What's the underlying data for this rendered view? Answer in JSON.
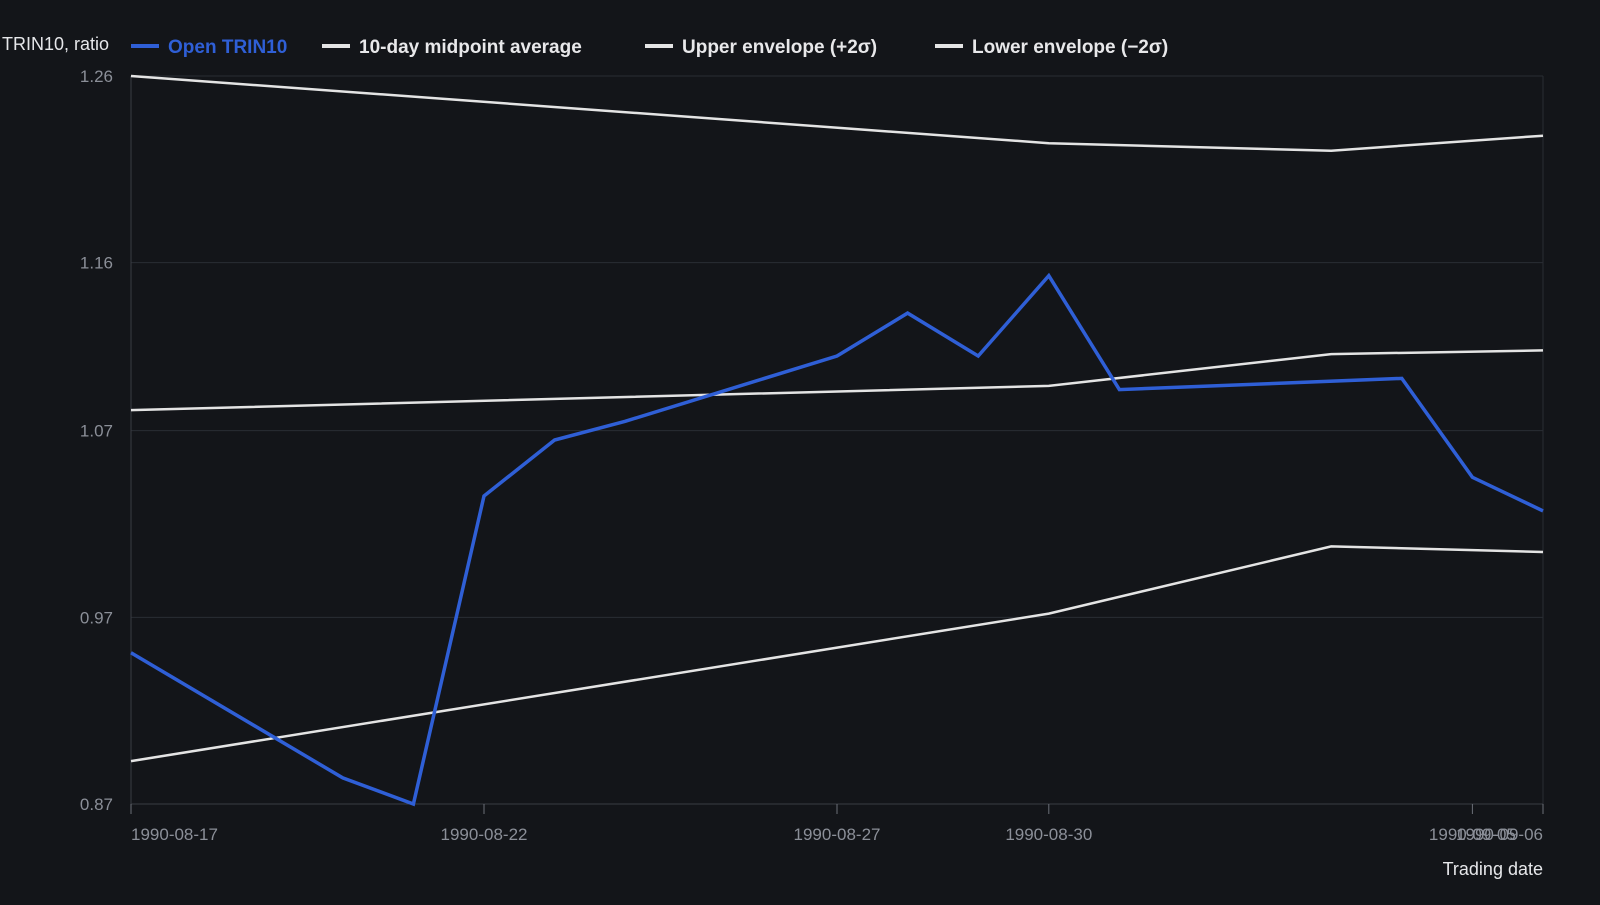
{
  "chart_data": {
    "type": "line",
    "ylabel": "TRIN10, ratio",
    "xlabel": "Trading date",
    "ylim": [
      0.87,
      1.26
    ],
    "y_ticks": [
      "0.87",
      "0.97",
      "1.07",
      "1.16",
      "1.26"
    ],
    "y_tick_values": [
      0.87,
      0.97,
      1.07,
      1.16,
      1.26
    ],
    "x_ticks": [
      "1990-08-17",
      "1990-08-22",
      "1990-08-27",
      "1990-08-30",
      "1990-09-05",
      "1990-09-06"
    ],
    "x_range": [
      "1990-08-17",
      "1990-09-06"
    ],
    "grid": true,
    "legend_position": "top-left",
    "series": [
      {
        "name": "Open TRIN10",
        "color": "#2f5fd6",
        "points": [
          [
            "1990-08-17",
            0.951
          ],
          [
            "1990-08-20",
            0.884
          ],
          [
            "1990-08-21",
            0.87
          ],
          [
            "1990-08-22",
            1.035
          ],
          [
            "1990-08-23",
            1.065
          ],
          [
            "1990-08-24",
            1.075
          ],
          [
            "1990-08-27",
            1.11
          ],
          [
            "1990-08-28",
            1.133
          ],
          [
            "1990-08-29",
            1.11
          ],
          [
            "1990-08-30",
            1.153
          ],
          [
            "1990-08-31",
            1.092
          ],
          [
            "1990-09-04",
            1.098
          ],
          [
            "1990-09-05",
            1.045
          ],
          [
            "1990-09-06",
            1.027
          ]
        ]
      },
      {
        "name": "10-day midpoint average",
        "color": "#e4e4e4",
        "points": [
          [
            "1990-08-17",
            1.081
          ],
          [
            "1990-08-30",
            1.094
          ],
          [
            "1990-09-03",
            1.111
          ],
          [
            "1990-09-06",
            1.113
          ]
        ]
      },
      {
        "name": "Upper envelope (+2σ)",
        "color": "#e4e4e4",
        "points": [
          [
            "1990-08-17",
            1.26
          ],
          [
            "1990-08-30",
            1.224
          ],
          [
            "1990-09-03",
            1.22
          ],
          [
            "1990-09-06",
            1.228
          ]
        ]
      },
      {
        "name": "Lower envelope (−2σ)",
        "color": "#e4e4e4",
        "points": [
          [
            "1990-08-17",
            0.893
          ],
          [
            "1990-08-30",
            0.972
          ],
          [
            "1990-09-03",
            1.008
          ],
          [
            "1990-09-06",
            1.005
          ]
        ]
      }
    ]
  }
}
